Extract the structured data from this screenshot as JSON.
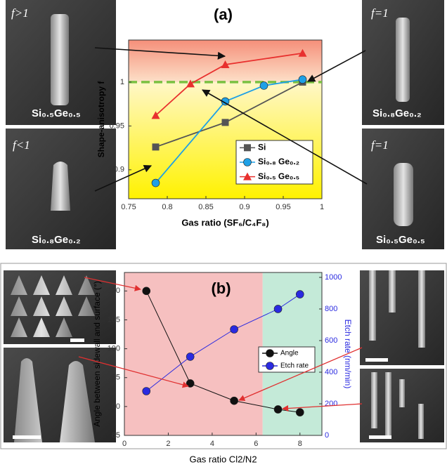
{
  "chart_data": [
    {
      "type": "line",
      "title": "(a)",
      "xlabel": "Gas ratio (SF₆/C₄F₈)",
      "ylabel": "Shape-anisotropy f",
      "xlim": [
        0.75,
        1
      ],
      "xticks": [
        0.75,
        0.8,
        0.85,
        0.9,
        0.95,
        1
      ],
      "ylim": [
        0.867,
        1.048
      ],
      "yticks": [
        0.9,
        0.95,
        1
      ],
      "reference_line": {
        "y": 1,
        "color": "#7ac142"
      },
      "legend": "lower right",
      "series": [
        {
          "name": "Si",
          "color": "#555555",
          "marker": "square",
          "x": [
            0.785,
            0.875,
            0.975
          ],
          "values": [
            0.926,
            0.954,
            1.0
          ]
        },
        {
          "name": "Si₀.₈ Ge₀.₂",
          "color": "#1ea0e6",
          "marker": "circle",
          "x": [
            0.785,
            0.875,
            0.925,
            0.975
          ],
          "values": [
            0.885,
            0.978,
            0.996,
            1.003
          ]
        },
        {
          "name": "Si₀.₅ Ge₀.₅",
          "color": "#e8302e",
          "marker": "triangle",
          "x": [
            0.785,
            0.83,
            0.875,
            0.975
          ],
          "values": [
            0.962,
            0.998,
            1.02,
            1.033
          ]
        }
      ]
    },
    {
      "type": "line",
      "title": "(b)",
      "xlabel": "Gas ratio Cl2/N2",
      "ylabel": "Angle  between sidewall and surface (°)",
      "y2label": "Etch rate (nm/min)",
      "xlim": [
        0,
        9
      ],
      "xticks": [
        0,
        2,
        4,
        6,
        8
      ],
      "ylim": [
        85,
        113.2
      ],
      "yticks": [
        85,
        90,
        95,
        100,
        105,
        110
      ],
      "y2lim": [
        0,
        1031
      ],
      "y2ticks": [
        0,
        200,
        400,
        600,
        800,
        1000
      ],
      "shade_split_x": 6.3,
      "shade_colors": [
        "#f6c0c0",
        "#c4ead8"
      ],
      "legend": "center right",
      "x": [
        1,
        3,
        5,
        7,
        8
      ],
      "series": [
        {
          "name": "Angle",
          "color": "#111111",
          "marker": "circle",
          "values": [
            110,
            94,
            91,
            89.5,
            89
          ]
        },
        {
          "name": "Etch rate",
          "color": "#2a2ae0",
          "marker": "circle",
          "axis": "y2",
          "values": [
            280,
            498,
            671,
            800,
            893
          ]
        }
      ]
    }
  ],
  "images": [
    {
      "f": "f>1",
      "material": "Si₀.₅Ge₀.₅"
    },
    {
      "f": "f<1",
      "material": "Si₀.₈Ge₀.₂"
    },
    {
      "f": "f=1",
      "material": "Si₀.₈Ge₀.₂"
    },
    {
      "f": "f=1",
      "material": "Si₀.₅Ge₀.₅"
    }
  ]
}
